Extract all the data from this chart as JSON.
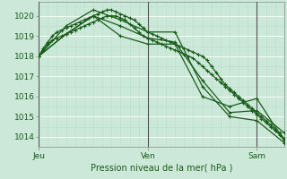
{
  "background_color": "#cce8d8",
  "grid_color_major": "#ffffff",
  "grid_color_minor": "#b8dece",
  "line_color": "#1a5c1a",
  "axis_label": "Pression niveau de la mer( hPa )",
  "x_ticks_labels": [
    "Jeu",
    "Ven",
    "Sam"
  ],
  "ylim": [
    1013.5,
    1020.7
  ],
  "yticks": [
    1014,
    1015,
    1016,
    1017,
    1018,
    1019,
    1020
  ],
  "xlim_hours": 108,
  "series_dense": [
    {
      "x": [
        0,
        2,
        4,
        6,
        8,
        10,
        12,
        14,
        16,
        18,
        20,
        22,
        24,
        26,
        28,
        30,
        32,
        34,
        36,
        38,
        40,
        42,
        44,
        46,
        48,
        50,
        52,
        54,
        56,
        58,
        60,
        62,
        64,
        66,
        68,
        70,
        72,
        74,
        76,
        78,
        80,
        82,
        84,
        86,
        88,
        90,
        92,
        94,
        96,
        98,
        100,
        102,
        104,
        106,
        108
      ],
      "y": [
        1018.0,
        1018.3,
        1018.6,
        1018.8,
        1018.9,
        1019.0,
        1019.1,
        1019.2,
        1019.3,
        1019.4,
        1019.5,
        1019.6,
        1019.7,
        1019.8,
        1019.9,
        1020.0,
        1020.0,
        1020.0,
        1019.9,
        1019.8,
        1019.6,
        1019.4,
        1019.2,
        1019.0,
        1018.9,
        1018.8,
        1018.7,
        1018.6,
        1018.5,
        1018.4,
        1018.3,
        1018.2,
        1018.1,
        1018.0,
        1017.9,
        1017.7,
        1017.5,
        1017.3,
        1017.1,
        1016.9,
        1016.7,
        1016.5,
        1016.3,
        1016.1,
        1015.9,
        1015.7,
        1015.5,
        1015.3,
        1015.1,
        1014.9,
        1014.7,
        1014.5,
        1014.3,
        1014.1,
        1013.9
      ]
    },
    {
      "x": [
        0,
        2,
        4,
        6,
        8,
        10,
        12,
        14,
        16,
        18,
        20,
        22,
        24,
        26,
        28,
        30,
        32,
        34,
        36,
        38,
        40,
        42,
        44,
        46,
        48,
        50,
        52,
        54,
        56,
        58,
        60,
        62,
        64,
        66,
        68,
        70,
        72,
        74,
        76,
        78,
        80,
        82,
        84,
        86,
        88,
        90,
        92,
        94,
        96,
        98,
        100,
        102,
        104,
        106,
        108
      ],
      "y": [
        1018.0,
        1018.4,
        1018.7,
        1019.0,
        1019.2,
        1019.3,
        1019.4,
        1019.5,
        1019.6,
        1019.7,
        1019.8,
        1019.9,
        1020.0,
        1020.1,
        1020.2,
        1020.3,
        1020.3,
        1020.2,
        1020.1,
        1020.0,
        1019.9,
        1019.8,
        1019.6,
        1019.4,
        1019.2,
        1019.1,
        1019.0,
        1018.9,
        1018.8,
        1018.7,
        1018.6,
        1018.5,
        1018.4,
        1018.3,
        1018.2,
        1018.1,
        1018.0,
        1017.8,
        1017.5,
        1017.2,
        1016.9,
        1016.6,
        1016.4,
        1016.2,
        1016.0,
        1015.8,
        1015.6,
        1015.4,
        1015.2,
        1015.0,
        1014.8,
        1014.6,
        1014.4,
        1014.2,
        1013.9
      ]
    }
  ],
  "series_sparse": [
    {
      "x": [
        0,
        12,
        24,
        36,
        48,
        60,
        72,
        84,
        96,
        108
      ],
      "y": [
        1018.0,
        1019.1,
        1020.0,
        1019.0,
        1018.6,
        1018.6,
        1016.0,
        1015.5,
        1015.9,
        1013.8
      ]
    },
    {
      "x": [
        0,
        12,
        24,
        36,
        48,
        60,
        72,
        84,
        96,
        108
      ],
      "y": [
        1018.0,
        1019.5,
        1020.3,
        1019.8,
        1019.2,
        1019.2,
        1016.5,
        1015.0,
        1014.8,
        1013.7
      ]
    },
    {
      "x": [
        0,
        12,
        24,
        36,
        48,
        60,
        72,
        84,
        96,
        108
      ],
      "y": [
        1018.0,
        1019.1,
        1020.0,
        1019.5,
        1018.9,
        1018.7,
        1016.8,
        1015.2,
        1015.3,
        1014.2
      ]
    }
  ]
}
